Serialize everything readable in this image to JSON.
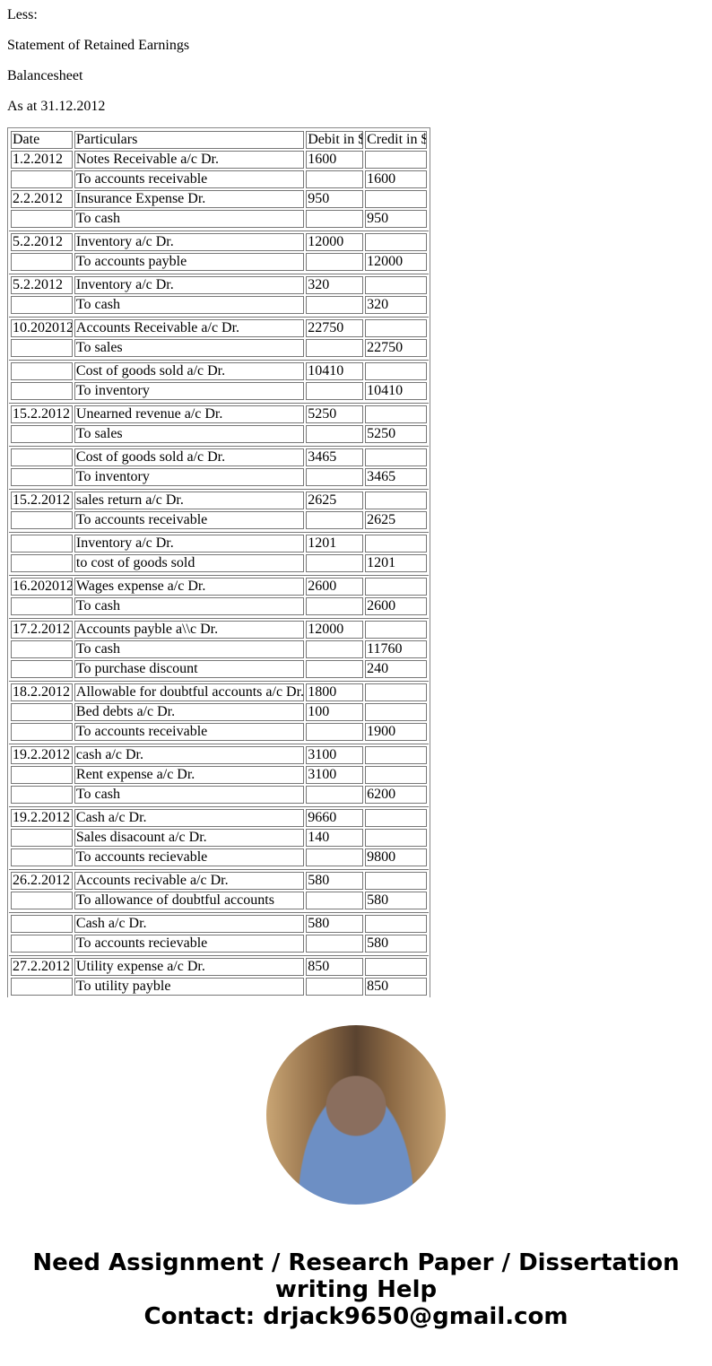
{
  "headings": [
    "Less:",
    "Statement of Retained Earnings",
    "Balancesheet",
    "As at 31.12.2012"
  ],
  "table": {
    "columns": [
      "Date",
      "Particulars",
      "Debit in $",
      "Credit in $"
    ],
    "groups": [
      [
        [
          "1.2.2012",
          "Notes Receivable a/c Dr.",
          "1600",
          ""
        ],
        [
          "",
          "To accounts receivable",
          "",
          "1600"
        ],
        [
          "2.2.2012",
          "Insurance Expense Dr.",
          "950",
          ""
        ],
        [
          "",
          "To cash",
          "",
          "950"
        ]
      ],
      [
        [
          "5.2.2012",
          "Inventory a/c Dr.",
          "12000",
          ""
        ],
        [
          "",
          "To accounts payble",
          "",
          "12000"
        ]
      ],
      [
        [
          "5.2.2012",
          "Inventory a/c Dr.",
          "320",
          ""
        ],
        [
          "",
          "To cash",
          "",
          "320"
        ]
      ],
      [
        [
          "10.202012",
          "Accounts Receivable a/c Dr.",
          "22750",
          ""
        ],
        [
          "",
          "To sales",
          "",
          "22750"
        ]
      ],
      [
        [
          "",
          "Cost of goods sold a/c Dr.",
          "10410",
          ""
        ],
        [
          "",
          "To inventory",
          "",
          "10410"
        ]
      ],
      [
        [
          "15.2.2012",
          "Unearned revenue a/c Dr.",
          "5250",
          ""
        ],
        [
          "",
          "To sales",
          "",
          "5250"
        ]
      ],
      [
        [
          "",
          "Cost of goods sold a/c Dr.",
          "3465",
          ""
        ],
        [
          "",
          "To inventory",
          "",
          "3465"
        ]
      ],
      [
        [
          "15.2.2012",
          "sales return a/c Dr.",
          "2625",
          ""
        ],
        [
          "",
          "To accounts receivable",
          "",
          "2625"
        ]
      ],
      [
        [
          "",
          "Inventory a/c Dr.",
          "1201",
          ""
        ],
        [
          "",
          "to cost of goods sold",
          "",
          "1201"
        ]
      ],
      [
        [
          "16.202012",
          "Wages expense a/c Dr.",
          "2600",
          ""
        ],
        [
          "",
          "To cash",
          "",
          "2600"
        ]
      ],
      [
        [
          "17.2.2012",
          "Accounts payble a\\\\c Dr.",
          "12000",
          ""
        ],
        [
          "",
          "To cash",
          "",
          "11760"
        ],
        [
          "",
          "To purchase discount",
          "",
          "240"
        ]
      ],
      [
        [
          "18.2.2012",
          "Allowable for doubtful accounts a/c Dr.",
          "1800",
          ""
        ],
        [
          "",
          "Bed debts a/c Dr.",
          "100",
          ""
        ],
        [
          "",
          "To accounts receivable",
          "",
          "1900"
        ]
      ],
      [
        [
          "19.2.2012",
          "cash a/c Dr.",
          "3100",
          ""
        ],
        [
          "",
          "Rent expense a/c Dr.",
          "3100",
          ""
        ],
        [
          "",
          "To cash",
          "",
          "6200"
        ]
      ],
      [
        [
          "19.2.2012",
          "Cash a/c Dr.",
          "9660",
          ""
        ],
        [
          "",
          "Sales disacount a/c Dr.",
          "140",
          ""
        ],
        [
          "",
          "To accounts recievable",
          "",
          "9800"
        ]
      ],
      [
        [
          "26.2.2012",
          "Accounts recivable a/c Dr.",
          "580",
          ""
        ],
        [
          "",
          "To allowance of doubtful accounts",
          "",
          "580"
        ]
      ],
      [
        [
          "",
          "Cash a/c Dr.",
          "580",
          ""
        ],
        [
          "",
          "To accounts recievable",
          "",
          "580"
        ]
      ],
      [
        [
          "27.2.2012",
          "Utility expense a/c Dr.",
          "850",
          ""
        ],
        [
          "",
          "To utility payble",
          "",
          "850"
        ]
      ]
    ]
  },
  "footer": {
    "line1": "Need Assignment / Research Paper / Dissertation writing Help",
    "line2": "Contact: drjack9650@gmail.com"
  }
}
